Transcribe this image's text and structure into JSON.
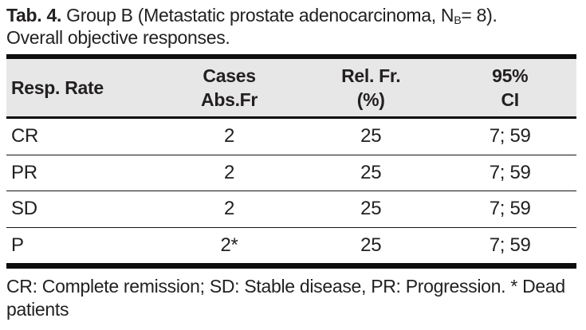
{
  "caption": {
    "label": "Tab. 4.",
    "text1": " Group B (Metastatic prostate adenocarcinoma, N",
    "subscript": "B",
    "text2": "= 8).",
    "line2": "Overall objective responses."
  },
  "table": {
    "headers": [
      {
        "lines": [
          "Resp. Rate"
        ]
      },
      {
        "lines": [
          "Cases",
          "Abs.Fr"
        ]
      },
      {
        "lines": [
          "Rel. Fr.",
          "(%)"
        ]
      },
      {
        "lines": [
          "95%",
          "CI"
        ]
      }
    ],
    "rows": [
      {
        "cells": [
          "CR",
          "2",
          "25",
          "7; 59"
        ]
      },
      {
        "cells": [
          "PR",
          "2",
          "25",
          "7; 59"
        ]
      },
      {
        "cells": [
          "SD",
          "2",
          "25",
          "7; 59"
        ]
      },
      {
        "cells": [
          "P",
          "2*",
          "25",
          "7; 59"
        ]
      }
    ]
  },
  "footnote": {
    "text": "CR: Complete remission; SD: Stable disease, PR: Progression. * Dead patients"
  },
  "colors": {
    "header_bg": "#e8e7e7",
    "text": "#232021",
    "rule": "#0d0d0d"
  }
}
